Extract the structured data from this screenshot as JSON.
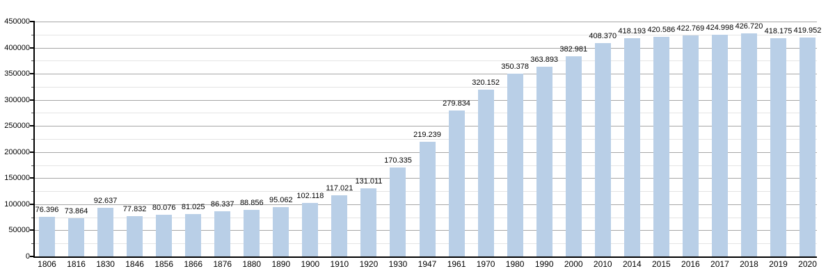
{
  "chart_data": {
    "type": "bar",
    "title": "",
    "xlabel": "",
    "ylabel": "",
    "categories": [
      "1806",
      "1816",
      "1830",
      "1846",
      "1856",
      "1866",
      "1876",
      "1880",
      "1890",
      "1900",
      "1910",
      "1920",
      "1930",
      "1947",
      "1961",
      "1970",
      "1980",
      "1990",
      "2000",
      "2010",
      "2014",
      "2015",
      "2016",
      "2017",
      "2018",
      "2019",
      "2020"
    ],
    "values": [
      76396,
      73864,
      92637,
      77832,
      80076,
      81025,
      86337,
      88856,
      95062,
      102118,
      117021,
      131011,
      170335,
      219239,
      279834,
      320152,
      350378,
      363893,
      382981,
      408370,
      418193,
      420586,
      422769,
      424998,
      426720,
      418175,
      419952
    ],
    "value_labels": [
      "76.396",
      "73.864",
      "92.637",
      "77.832",
      "80.076",
      "81.025",
      "86.337",
      "88.856",
      "95.062",
      "102.118",
      "117.021",
      "131.011",
      "170.335",
      "219.239",
      "279.834",
      "320.152",
      "350.378",
      "363.893",
      "382.981",
      "408.370",
      "418.193",
      "420.586",
      "422.769",
      "424.998",
      "426.720",
      "418.175",
      "419.952"
    ],
    "ylim": [
      0,
      450000
    ],
    "y_major_step": 50000,
    "y_minor_step": 25000,
    "grid": "on",
    "legend": "none",
    "colors": {
      "bar_fill": "#b9cfe7",
      "axis": "#000000",
      "grid_major": "#a6a6a6",
      "grid_minor": "#e4e4e4",
      "text": "#000000",
      "background": "#ffffff"
    }
  }
}
